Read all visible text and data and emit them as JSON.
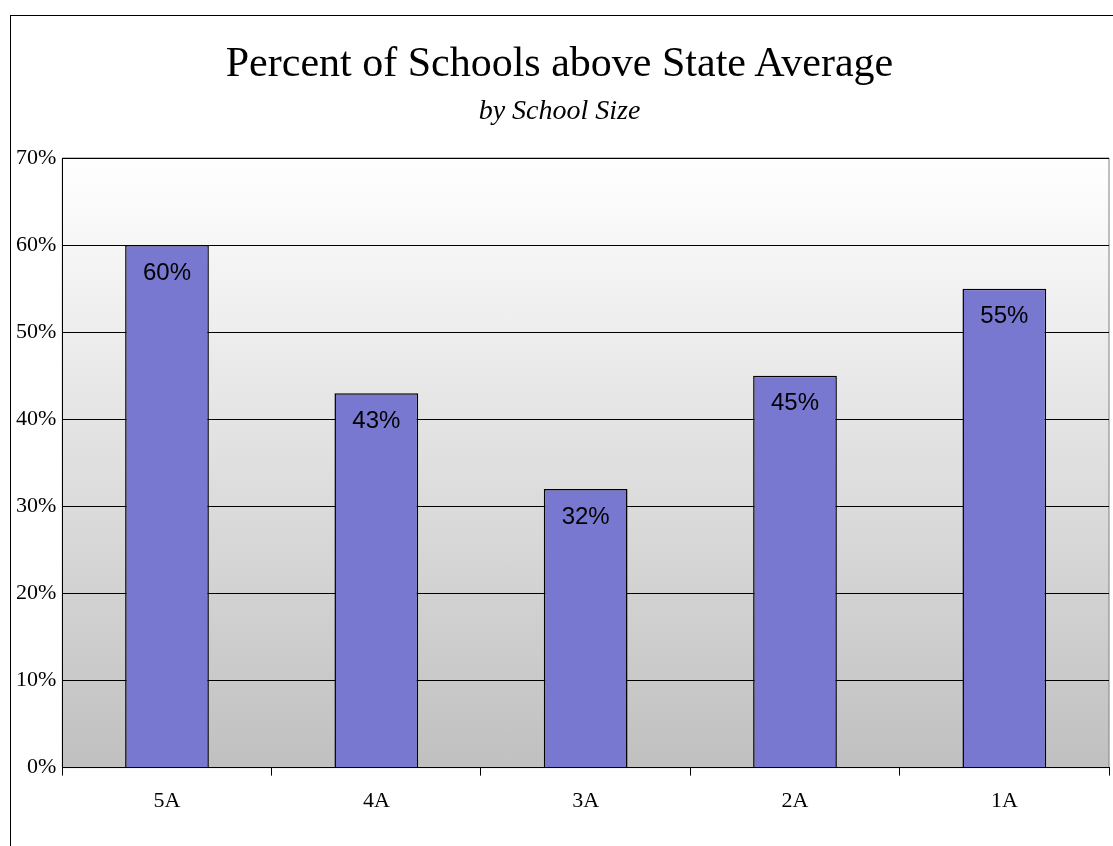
{
  "chart_data": {
    "type": "bar",
    "title": "Percent of Schools above State Average",
    "subtitle": "by School Size",
    "categories": [
      "5A",
      "4A",
      "3A",
      "2A",
      "1A"
    ],
    "values": [
      60,
      43,
      32,
      45,
      55
    ],
    "value_labels": [
      "60%",
      "43%",
      "32%",
      "45%",
      "55%"
    ],
    "color": "#7878d0",
    "ylim": [
      0,
      70
    ],
    "yticks": [
      {
        "value": 0,
        "label": "0%"
      },
      {
        "value": 10,
        "label": "10%"
      },
      {
        "value": 20,
        "label": "20%"
      },
      {
        "value": 30,
        "label": "30%"
      },
      {
        "value": 40,
        "label": "40%"
      },
      {
        "value": 50,
        "label": "50%"
      },
      {
        "value": 60,
        "label": "60%"
      },
      {
        "value": 70,
        "label": "70%"
      }
    ],
    "grid": "y",
    "legend": false
  }
}
